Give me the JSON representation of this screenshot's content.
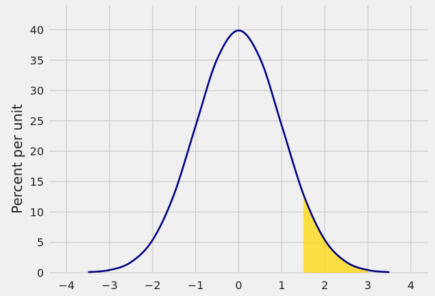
{
  "chart_data": {
    "type": "area",
    "title": "",
    "xlabel": "",
    "ylabel": "Percent per unit",
    "xlim": [
      -4.4,
      4.4
    ],
    "ylim": [
      0,
      44
    ],
    "x_ticks": [
      -4,
      -3,
      -2,
      -1,
      0,
      1,
      2,
      3,
      4
    ],
    "x_tick_labels": [
      "−4",
      "−3",
      "−2",
      "−1",
      "0",
      "1",
      "2",
      "3",
      "4"
    ],
    "y_ticks": [
      0,
      5,
      10,
      15,
      20,
      25,
      30,
      35,
      40
    ],
    "y_tick_labels": [
      "0",
      "5",
      "10",
      "15",
      "20",
      "25",
      "30",
      "35",
      "40"
    ],
    "grid": true,
    "series": [
      {
        "type": "line",
        "x": [
          -3.5,
          -3.0,
          -2.5,
          -2.0,
          -1.5,
          -1.0,
          -0.5,
          0.0,
          0.5,
          1.0,
          1.5,
          2.0,
          2.5,
          3.0,
          3.5
        ],
        "values": [
          0.09,
          0.44,
          1.75,
          5.4,
          12.95,
          24.2,
          35.21,
          39.89,
          35.21,
          24.2,
          12.95,
          5.4,
          1.75,
          0.44,
          0.09
        ]
      },
      {
        "type": "shaded-area",
        "x": [
          1.5,
          1.75,
          2.0,
          2.25,
          2.5,
          2.75,
          3.0
        ],
        "values": [
          12.95,
          8.63,
          5.4,
          3.17,
          1.75,
          0.91,
          0.44
        ]
      }
    ],
    "colors": {
      "line": "#000080",
      "fill": "#ffd700",
      "grid": "#cbcbcb",
      "background": "#f0f0f0"
    }
  }
}
